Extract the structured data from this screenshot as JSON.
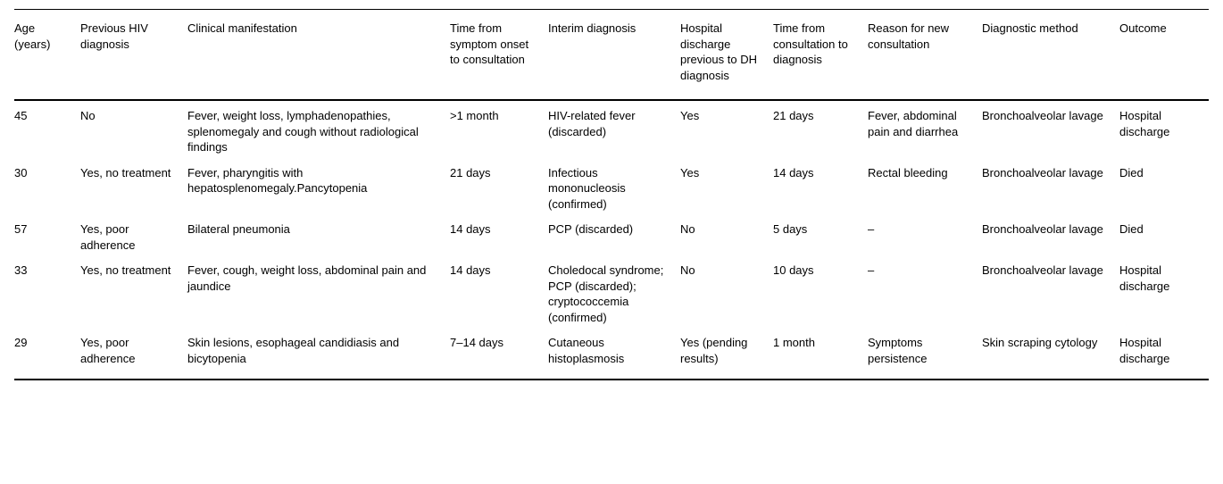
{
  "table": {
    "columns": [
      "Age (years)",
      "Previous HIV diagnosis",
      "Clinical manifestation",
      "Time from symptom onset to consultation",
      "Interim diagnosis",
      "Hospital discharge previous to DH diagnosis",
      "Time from consultation to diagnosis",
      "Reason for new consultation",
      "Diagnostic method",
      "Outcome"
    ],
    "rows": [
      [
        "45",
        "No",
        "Fever, weight loss, lymphadenopathies, splenomegaly and cough without radiological findings",
        ">1 month",
        "HIV-related fever (discarded)",
        "Yes",
        "21 days",
        "Fever, abdominal pain and diarrhea",
        "Bronchoalveolar lavage",
        "Hospital discharge"
      ],
      [
        "30",
        "Yes, no treatment",
        "Fever, pharyngitis with hepatosplenomegaly.Pancytopenia",
        "21 days",
        "Infectious mononucleosis (confirmed)",
        "Yes",
        "14 days",
        "Rectal bleeding",
        "Bronchoalveolar lavage",
        "Died"
      ],
      [
        "57",
        "Yes, poor adherence",
        "Bilateral pneumonia",
        "14 days",
        "PCP (discarded)",
        "No",
        "5 days",
        "–",
        "Bronchoalveolar lavage",
        "Died"
      ],
      [
        "33",
        "Yes, no treatment",
        "Fever, cough, weight loss, abdominal pain and jaundice",
        "14 days",
        "Choledocal syndrome; PCP (discarded); cryptococcemia (confirmed)",
        "No",
        "10 days",
        "–",
        "Bronchoalveolar lavage",
        "Hospital discharge"
      ],
      [
        "29",
        "Yes, poor adherence",
        "Skin lesions, esophageal candidiasis and bicytopenia",
        "7–14 days",
        "Cutaneous histoplasmosis",
        "Yes (pending results)",
        "1 month",
        "Symptoms persistence",
        "Skin scraping cytology",
        "Hospital discharge"
      ]
    ]
  },
  "colors": {
    "background": "#ffffff",
    "text": "#000000",
    "rule": "#000000"
  }
}
